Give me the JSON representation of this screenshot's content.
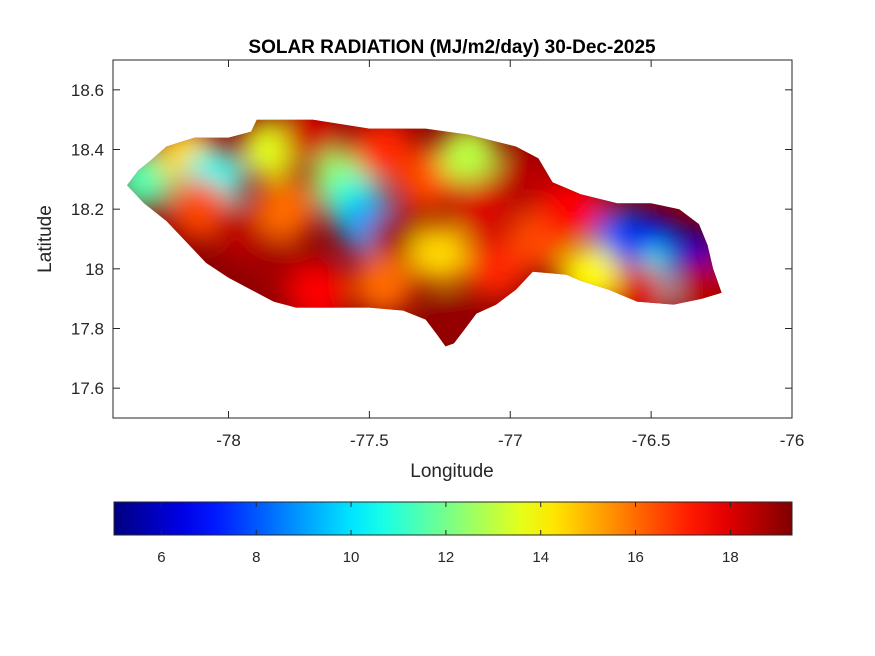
{
  "chart_data": {
    "type": "heatmap",
    "title": "SOLAR RADIATION (MJ/m2/day) 30-Dec-2025",
    "xlabel": "Longitude",
    "ylabel": "Latitude",
    "xlim": [
      -78.41,
      -76.0
    ],
    "ylim": [
      17.5,
      18.7
    ],
    "x_ticks": [
      -78,
      -77.5,
      -77,
      -76.5,
      -76
    ],
    "x_tick_labels": [
      "-78",
      "-77.5",
      "-77",
      "-76.5",
      "-76"
    ],
    "y_ticks": [
      17.6,
      17.8,
      18,
      18.2,
      18.4,
      18.6
    ],
    "y_tick_labels": [
      "17.6",
      "17.8",
      "18",
      "18.2",
      "18.4",
      "18.6"
    ],
    "grid": false,
    "colorbar": {
      "placement": "bottom",
      "colormap": "jet",
      "range": [
        5,
        19.3
      ],
      "ticks": [
        6,
        8,
        10,
        12,
        14,
        16,
        18
      ],
      "tick_labels": [
        "6",
        "8",
        "10",
        "12",
        "14",
        "16",
        "18"
      ]
    },
    "region_outline": [
      [
        -78.36,
        18.28
      ],
      [
        -78.32,
        18.33
      ],
      [
        -78.28,
        18.36
      ],
      [
        -78.22,
        18.41
      ],
      [
        -78.12,
        18.44
      ],
      [
        -78.0,
        18.44
      ],
      [
        -77.92,
        18.46
      ],
      [
        -77.9,
        18.5
      ],
      [
        -77.7,
        18.5
      ],
      [
        -77.5,
        18.47
      ],
      [
        -77.3,
        18.47
      ],
      [
        -77.15,
        18.45
      ],
      [
        -76.98,
        18.41
      ],
      [
        -76.9,
        18.37
      ],
      [
        -76.85,
        18.29
      ],
      [
        -76.75,
        18.25
      ],
      [
        -76.62,
        18.22
      ],
      [
        -76.5,
        18.22
      ],
      [
        -76.4,
        18.2
      ],
      [
        -76.33,
        18.15
      ],
      [
        -76.3,
        18.08
      ],
      [
        -76.28,
        18.0
      ],
      [
        -76.25,
        17.92
      ],
      [
        -76.32,
        17.9
      ],
      [
        -76.42,
        17.88
      ],
      [
        -76.55,
        17.89
      ],
      [
        -76.65,
        17.93
      ],
      [
        -76.75,
        17.96
      ],
      [
        -76.8,
        17.98
      ],
      [
        -76.92,
        17.99
      ],
      [
        -76.98,
        17.93
      ],
      [
        -77.05,
        17.88
      ],
      [
        -77.12,
        17.85
      ],
      [
        -77.16,
        17.8
      ],
      [
        -77.2,
        17.75
      ],
      [
        -77.23,
        17.74
      ],
      [
        -77.26,
        17.78
      ],
      [
        -77.3,
        17.83
      ],
      [
        -77.38,
        17.86
      ],
      [
        -77.5,
        17.87
      ],
      [
        -77.62,
        17.87
      ],
      [
        -77.76,
        17.87
      ],
      [
        -77.84,
        17.89
      ],
      [
        -77.92,
        17.93
      ],
      [
        -78.0,
        17.97
      ],
      [
        -78.08,
        18.02
      ],
      [
        -78.15,
        18.09
      ],
      [
        -78.22,
        18.16
      ],
      [
        -78.3,
        18.22
      ]
    ],
    "zones": [
      {
        "lon": -78.3,
        "lat": 18.3,
        "value": 11.5
      },
      {
        "lon": -78.15,
        "lat": 18.38,
        "value": 14.5
      },
      {
        "lon": -78.05,
        "lat": 18.3,
        "value": 10.5
      },
      {
        "lon": -78.1,
        "lat": 18.2,
        "value": 16.5
      },
      {
        "lon": -77.95,
        "lat": 18.12,
        "value": 18.5
      },
      {
        "lon": -77.85,
        "lat": 18.4,
        "value": 13.5
      },
      {
        "lon": -77.8,
        "lat": 18.2,
        "value": 16.0
      },
      {
        "lon": -77.82,
        "lat": 18.0,
        "value": 18.8
      },
      {
        "lon": -77.7,
        "lat": 18.45,
        "value": 18.2
      },
      {
        "lon": -77.6,
        "lat": 18.3,
        "value": 12.5
      },
      {
        "lon": -77.55,
        "lat": 18.22,
        "value": 11.0
      },
      {
        "lon": -77.5,
        "lat": 18.15,
        "value": 9.0
      },
      {
        "lon": -77.68,
        "lat": 17.92,
        "value": 17.5
      },
      {
        "lon": -77.45,
        "lat": 18.4,
        "value": 17.0
      },
      {
        "lon": -77.4,
        "lat": 18.1,
        "value": 18.8
      },
      {
        "lon": -77.45,
        "lat": 17.95,
        "value": 16.0
      },
      {
        "lon": -77.3,
        "lat": 18.3,
        "value": 16.5
      },
      {
        "lon": -77.25,
        "lat": 18.05,
        "value": 14.5
      },
      {
        "lon": -77.2,
        "lat": 17.82,
        "value": 19.0
      },
      {
        "lon": -77.15,
        "lat": 18.38,
        "value": 13.0
      },
      {
        "lon": -77.1,
        "lat": 18.2,
        "value": 18.0
      },
      {
        "lon": -77.05,
        "lat": 18.0,
        "value": 17.0
      },
      {
        "lon": -76.95,
        "lat": 18.3,
        "value": 18.5
      },
      {
        "lon": -76.9,
        "lat": 18.1,
        "value": 16.5
      },
      {
        "lon": -76.78,
        "lat": 18.2,
        "value": 17.5
      },
      {
        "lon": -76.6,
        "lat": 18.1,
        "value": 8.0
      },
      {
        "lon": -76.5,
        "lat": 18.08,
        "value": 6.5
      },
      {
        "lon": -76.45,
        "lat": 17.98,
        "value": 10.5
      },
      {
        "lon": -76.35,
        "lat": 18.03,
        "value": 6.0
      },
      {
        "lon": -76.32,
        "lat": 17.93,
        "value": 18.5
      },
      {
        "lon": -76.55,
        "lat": 17.92,
        "value": 18.0
      },
      {
        "lon": -76.72,
        "lat": 17.98,
        "value": 14.0
      }
    ]
  }
}
